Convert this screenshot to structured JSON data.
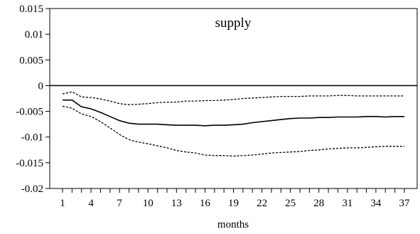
{
  "chart_data": {
    "type": "line",
    "title": "supply",
    "xlabel": "months",
    "ylabel": "",
    "xlim": [
      1,
      37
    ],
    "ylim": [
      -0.02,
      0.015
    ],
    "x_ticks": [
      1,
      4,
      7,
      10,
      13,
      16,
      19,
      22,
      25,
      28,
      31,
      34,
      37
    ],
    "y_ticks": [
      0.015,
      0.01,
      0.005,
      0,
      -0.005,
      -0.01,
      -0.015,
      -0.02
    ],
    "y_tick_labels": [
      "0.015",
      "0.01",
      "0.005",
      "0",
      "-0.005",
      "-0.01",
      "-0.015",
      "-0.02"
    ],
    "zero_line": 0,
    "grid": false,
    "legend": "none",
    "x": [
      1,
      2,
      3,
      4,
      5,
      6,
      7,
      8,
      9,
      10,
      11,
      12,
      13,
      14,
      15,
      16,
      17,
      18,
      19,
      20,
      21,
      22,
      23,
      24,
      25,
      26,
      27,
      28,
      29,
      30,
      31,
      32,
      33,
      34,
      35,
      36,
      37
    ],
    "series": [
      {
        "style": "solid",
        "values": [
          -0.0028,
          -0.0028,
          -0.0041,
          -0.0045,
          -0.0052,
          -0.006,
          -0.0068,
          -0.0073,
          -0.0075,
          -0.0075,
          -0.0075,
          -0.0076,
          -0.0077,
          -0.0077,
          -0.0077,
          -0.0078,
          -0.0077,
          -0.0077,
          -0.0076,
          -0.0075,
          -0.0072,
          -0.007,
          -0.0068,
          -0.0066,
          -0.0064,
          -0.0063,
          -0.0063,
          -0.0062,
          -0.0062,
          -0.0061,
          -0.0061,
          -0.0061,
          -0.006,
          -0.006,
          -0.0061,
          -0.006,
          -0.006
        ]
      },
      {
        "style": "dashed",
        "values": [
          -0.0016,
          -0.0012,
          -0.0022,
          -0.0023,
          -0.0026,
          -0.003,
          -0.0035,
          -0.0037,
          -0.0036,
          -0.0035,
          -0.0033,
          -0.0032,
          -0.0032,
          -0.003,
          -0.003,
          -0.0029,
          -0.0029,
          -0.0028,
          -0.0027,
          -0.0025,
          -0.0024,
          -0.0023,
          -0.0022,
          -0.0021,
          -0.0021,
          -0.0021,
          -0.002,
          -0.002,
          -0.002,
          -0.0019,
          -0.0019,
          -0.002,
          -0.002,
          -0.002,
          -0.002,
          -0.002,
          -0.002
        ]
      },
      {
        "style": "dashed",
        "values": [
          -0.004,
          -0.0044,
          -0.0055,
          -0.006,
          -0.007,
          -0.0082,
          -0.0095,
          -0.0105,
          -0.011,
          -0.0113,
          -0.0117,
          -0.0121,
          -0.0126,
          -0.0129,
          -0.0131,
          -0.0135,
          -0.0136,
          -0.0136,
          -0.0137,
          -0.0136,
          -0.0135,
          -0.0133,
          -0.0131,
          -0.013,
          -0.0129,
          -0.0128,
          -0.0126,
          -0.0125,
          -0.0123,
          -0.0122,
          -0.0121,
          -0.0121,
          -0.012,
          -0.0119,
          -0.0118,
          -0.0118,
          -0.0118
        ]
      }
    ]
  }
}
